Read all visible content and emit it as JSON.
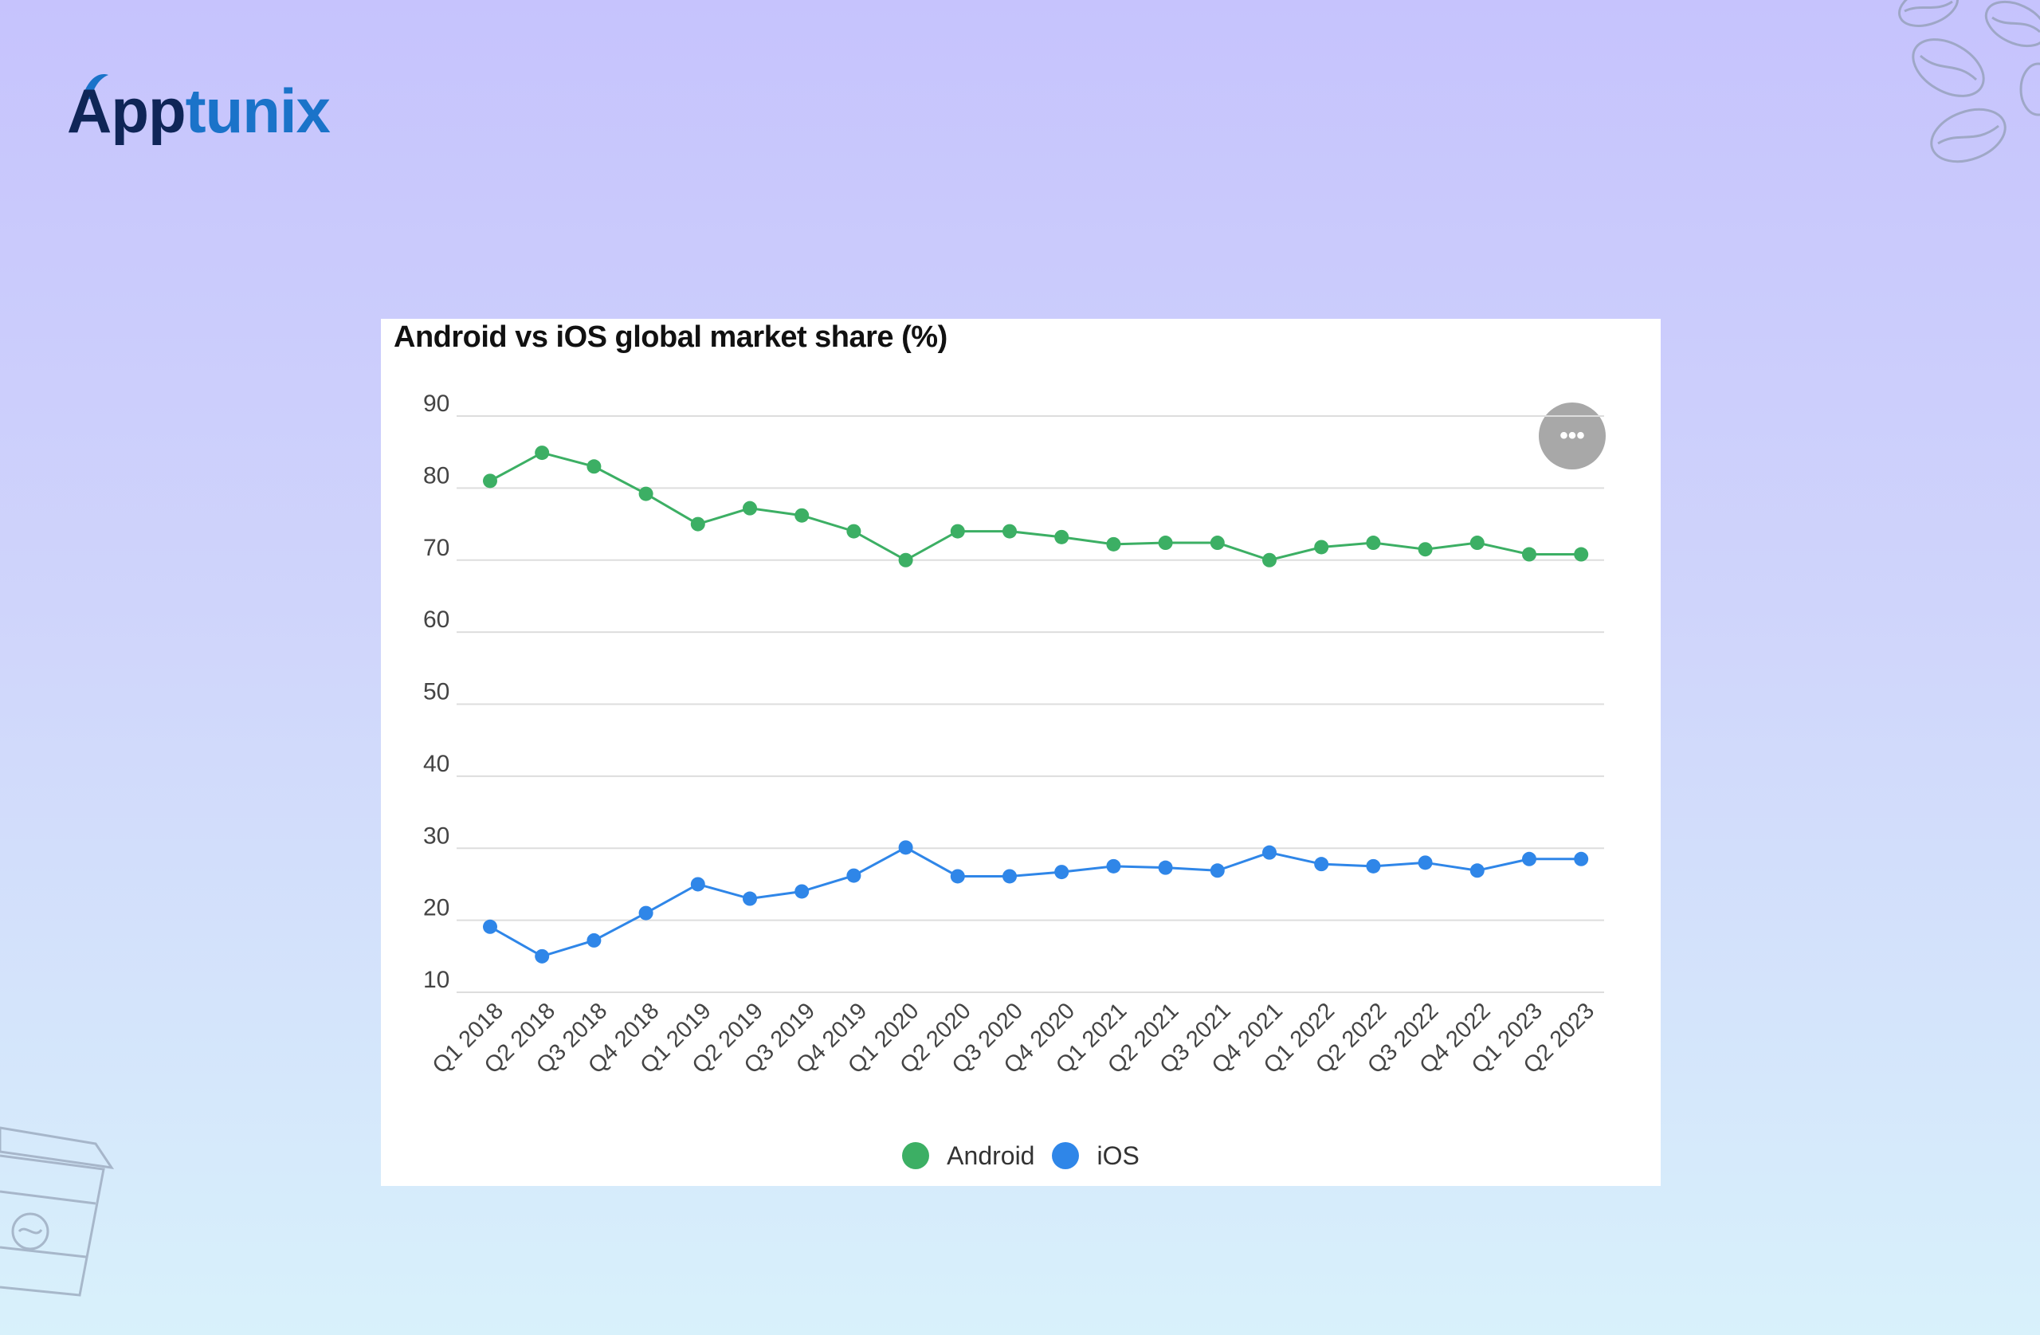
{
  "brand": {
    "part1": "App",
    "part2": "tunix"
  },
  "menu_icon": "more-horizontal-icon",
  "decorations": [
    "coffee-beans-icon",
    "coffee-cup-icon"
  ],
  "colors": {
    "android": "#3caf64",
    "ios": "#2f86e8",
    "brand_dark": "#0f2557",
    "brand_blue": "#1a73c9"
  },
  "chart_data": {
    "type": "line",
    "title": "Android vs iOS global market share (%)",
    "xlabel": "",
    "ylabel": "",
    "ylim": [
      10,
      90
    ],
    "yticks": [
      90,
      80,
      70,
      60,
      50,
      40,
      30,
      20,
      10
    ],
    "grid": true,
    "legend_position": "bottom",
    "categories": [
      "Q1 2018",
      "Q2 2018",
      "Q3 2018",
      "Q4 2018",
      "Q1 2019",
      "Q2 2019",
      "Q3 2019",
      "Q4 2019",
      "Q1 2020",
      "Q2 2020",
      "Q3 2020",
      "Q4 2020",
      "Q1 2021",
      "Q2 2021",
      "Q3 2021",
      "Q4 2021",
      "Q1 2022",
      "Q2 2022",
      "Q3 2022",
      "Q4 2022",
      "Q1 2023",
      "Q2 2023"
    ],
    "series": [
      {
        "name": "Android",
        "color": "#3caf64",
        "values": [
          81,
          84.9,
          83,
          79.2,
          75,
          77.2,
          76.2,
          74,
          70,
          74,
          74,
          73.2,
          72.2,
          72.4,
          72.4,
          70,
          71.8,
          72.4,
          71.5,
          72.4,
          70.8,
          70.8
        ]
      },
      {
        "name": "iOS",
        "color": "#2f86e8",
        "values": [
          19.1,
          15,
          17.2,
          21,
          25,
          23,
          24,
          26.2,
          30.1,
          26.1,
          26.1,
          26.7,
          27.5,
          27.3,
          26.9,
          29.4,
          27.8,
          27.5,
          28,
          26.9,
          28.5,
          28.5
        ]
      }
    ]
  }
}
